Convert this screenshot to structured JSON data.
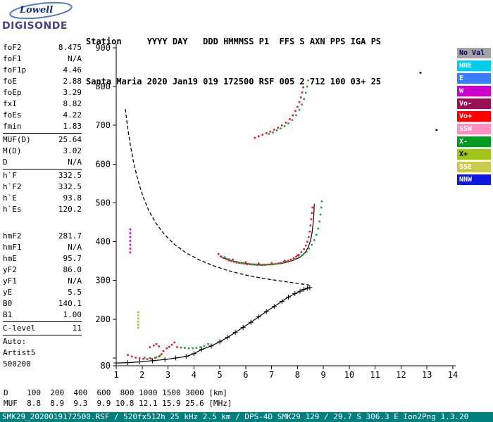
{
  "logo": {
    "line1": "Lowell",
    "line2": "DIGISONDE"
  },
  "header": {
    "line1": "Station     YYYY DAY   DDD HMMMSS P1  FFS S AXN PPS IGA PS",
    "line2": "Santa Maria 2020 Jan19 019 172500 RSF 005 2 712 100 03+ 25"
  },
  "params": {
    "groups": [
      {
        "rows": [
          [
            "foF2",
            "8.475"
          ],
          [
            "foF1",
            "N/A"
          ],
          [
            "foF1p",
            "4.46"
          ],
          [
            "foE",
            "2.88"
          ],
          [
            "foEp",
            "3.29"
          ],
          [
            "fxI",
            "8.82"
          ],
          [
            "foEs",
            "4.22"
          ],
          [
            "fmin",
            "1.83"
          ]
        ],
        "divider_after": true
      },
      {
        "rows": [
          [
            "MUF(D)",
            "25.64"
          ],
          [
            "M(D)",
            "3.02"
          ],
          [
            "D",
            "N/A"
          ]
        ],
        "divider_after": true
      },
      {
        "rows": [
          [
            "h`F",
            "332.5"
          ],
          [
            "h`F2",
            "332.5"
          ],
          [
            "h`E",
            "93.8"
          ],
          [
            "h`Es",
            "120.2"
          ]
        ],
        "divider_after": false,
        "gap_after": 22
      },
      {
        "rows": [
          [
            "hmF2",
            "281.7"
          ],
          [
            "hmF1",
            "N/A"
          ],
          [
            "hmE",
            "95.7"
          ],
          [
            "yF2",
            "86.0"
          ],
          [
            "yF1",
            "N/A"
          ],
          [
            "yE",
            "5.5"
          ],
          [
            "B0",
            "140.1"
          ],
          [
            "B1",
            "1.00"
          ]
        ],
        "divider_after": true
      },
      {
        "rows": [
          [
            "C-level",
            "11"
          ]
        ],
        "divider_after": true
      },
      {
        "rows": [
          [
            "Auto:",
            ""
          ],
          [
            "Artist5",
            ""
          ],
          [
            "500200",
            ""
          ]
        ],
        "divider_after": false
      }
    ]
  },
  "legend": {
    "entries": [
      {
        "label": "No Val",
        "bg": "#a3a3a8",
        "fg": "#000066"
      },
      {
        "label": "NNE",
        "bg": "#00ccee",
        "fg": "#ffffff"
      },
      {
        "label": "E",
        "bg": "#3a7dff",
        "fg": "#ffffff"
      },
      {
        "label": "W",
        "bg": "#cc00cc",
        "fg": "#ffffff"
      },
      {
        "label": "Vo-",
        "bg": "#991155",
        "fg": "#ffffff"
      },
      {
        "label": "Vo+",
        "bg": "#ff0000",
        "fg": "#ffffff"
      },
      {
        "label": "SSW",
        "bg": "#ff8fc0",
        "fg": "#ffffff"
      },
      {
        "label": "X-",
        "bg": "#009922",
        "fg": "#ffffff"
      },
      {
        "label": "X+",
        "bg": "#9fc41a",
        "fg": "#000000"
      },
      {
        "label": "SSE",
        "bg": "#c9c94f",
        "fg": "#ffffff"
      },
      {
        "label": "NNW",
        "bg": "#0f18dd",
        "fg": "#ffffff"
      }
    ]
  },
  "chart_data": {
    "type": "scatter",
    "title": "",
    "xlabel": "",
    "ylabel": "",
    "axes": {
      "xlim": [
        1,
        14
      ],
      "ylim": [
        80,
        900
      ],
      "x_ticks": [
        1,
        2,
        3,
        4,
        5,
        6,
        7,
        8,
        9,
        10,
        11,
        12,
        13,
        14
      ],
      "y_ticks": [
        80,
        100,
        200,
        300,
        400,
        500,
        600,
        700,
        800,
        900
      ],
      "y_labels": [
        900,
        800,
        700,
        600,
        500,
        400,
        300,
        200,
        80
      ]
    },
    "series": [
      {
        "name": "muf-transmission-curve",
        "kind": "line",
        "dash": "5 3",
        "color": "#000000",
        "w": 1.3,
        "points": [
          [
            1.35,
            742
          ],
          [
            1.44,
            695
          ],
          [
            1.55,
            648
          ],
          [
            1.68,
            602
          ],
          [
            1.84,
            558
          ],
          [
            2.03,
            517
          ],
          [
            2.26,
            480
          ],
          [
            2.54,
            447
          ],
          [
            2.87,
            418
          ],
          [
            3.25,
            393
          ],
          [
            3.7,
            371
          ],
          [
            4.2,
            353
          ],
          [
            4.75,
            338
          ],
          [
            5.35,
            325
          ],
          [
            6.0,
            314
          ],
          [
            6.7,
            305
          ],
          [
            7.4,
            298
          ],
          [
            8.05,
            292
          ],
          [
            8.45,
            288
          ]
        ]
      },
      {
        "name": "true-height-profile",
        "kind": "line",
        "color": "#000000",
        "marker": "plus",
        "w": 1.2,
        "points": [
          [
            1.0,
            87
          ],
          [
            1.45,
            88
          ],
          [
            1.9,
            90
          ],
          [
            2.4,
            93
          ],
          [
            2.88,
            96
          ],
          [
            3.3,
            100
          ],
          [
            3.7,
            104
          ],
          [
            4.0,
            111
          ],
          [
            4.3,
            122
          ],
          [
            4.67,
            131
          ],
          [
            5.0,
            142
          ],
          [
            5.3,
            153
          ],
          [
            5.6,
            166
          ],
          [
            5.9,
            179
          ],
          [
            6.2,
            192
          ],
          [
            6.5,
            206
          ],
          [
            6.8,
            220
          ],
          [
            7.1,
            233
          ],
          [
            7.4,
            246
          ],
          [
            7.65,
            257
          ],
          [
            7.9,
            266
          ],
          [
            8.1,
            272
          ],
          [
            8.25,
            277
          ],
          [
            8.38,
            280
          ],
          [
            8.475,
            281.7
          ]
        ]
      },
      {
        "name": "o-trace-fit",
        "kind": "line",
        "color": "#000000",
        "w": 1.2,
        "points": [
          [
            5.0,
            362
          ],
          [
            5.4,
            352
          ],
          [
            5.8,
            346
          ],
          [
            6.2,
            342
          ],
          [
            6.6,
            340
          ],
          [
            7.0,
            341
          ],
          [
            7.4,
            344
          ],
          [
            7.8,
            351
          ],
          [
            8.1,
            360
          ],
          [
            8.3,
            372
          ],
          [
            8.42,
            386
          ],
          [
            8.5,
            402
          ],
          [
            8.56,
            422
          ],
          [
            8.6,
            444
          ],
          [
            8.63,
            466
          ],
          [
            8.65,
            498
          ]
        ]
      },
      {
        "name": "f-trace-o",
        "kind": "scatter",
        "color": "#e8192c",
        "points": [
          [
            4.95,
            368
          ],
          [
            5.05,
            362
          ],
          [
            5.15,
            358
          ],
          [
            5.25,
            355
          ],
          [
            5.35,
            352
          ],
          [
            5.45,
            350
          ],
          [
            5.5,
            354
          ],
          [
            5.55,
            348
          ],
          [
            5.65,
            346
          ],
          [
            5.75,
            345
          ],
          [
            5.85,
            344
          ],
          [
            5.95,
            343
          ],
          [
            6.0,
            347
          ],
          [
            6.05,
            342
          ],
          [
            6.15,
            342
          ],
          [
            6.25,
            341
          ],
          [
            6.35,
            341
          ],
          [
            6.45,
            340
          ],
          [
            6.5,
            344
          ],
          [
            6.55,
            340
          ],
          [
            6.65,
            340
          ],
          [
            6.75,
            340
          ],
          [
            6.85,
            341
          ],
          [
            6.95,
            341
          ],
          [
            7.0,
            345
          ],
          [
            7.05,
            342
          ],
          [
            7.15,
            343
          ],
          [
            7.25,
            344
          ],
          [
            7.35,
            345
          ],
          [
            7.45,
            347
          ],
          [
            7.5,
            351
          ],
          [
            7.55,
            349
          ],
          [
            7.65,
            351
          ],
          [
            7.75,
            354
          ],
          [
            7.85,
            357
          ],
          [
            7.95,
            361
          ],
          [
            8.0,
            365
          ],
          [
            8.05,
            366
          ],
          [
            8.15,
            373
          ],
          [
            8.25,
            381
          ],
          [
            8.32,
            390
          ],
          [
            8.38,
            400
          ],
          [
            8.43,
            412
          ],
          [
            8.47,
            426
          ],
          [
            8.5,
            442
          ],
          [
            8.53,
            458
          ],
          [
            8.56,
            474
          ],
          [
            8.58,
            488
          ]
        ]
      },
      {
        "name": "f-trace-x",
        "kind": "scatter",
        "color": "#23a33c",
        "points": [
          [
            5.2,
            360
          ],
          [
            5.35,
            355
          ],
          [
            5.5,
            351
          ],
          [
            5.65,
            348
          ],
          [
            5.8,
            346
          ],
          [
            5.95,
            344
          ],
          [
            6.1,
            343
          ],
          [
            6.25,
            342
          ],
          [
            6.4,
            341
          ],
          [
            6.55,
            341
          ],
          [
            6.7,
            341
          ],
          [
            6.85,
            341
          ],
          [
            7.0,
            342
          ],
          [
            7.15,
            343
          ],
          [
            7.3,
            344
          ],
          [
            7.45,
            346
          ],
          [
            7.6,
            348
          ],
          [
            7.75,
            351
          ],
          [
            7.9,
            355
          ],
          [
            8.05,
            360
          ],
          [
            8.2,
            366
          ],
          [
            8.35,
            374
          ],
          [
            8.45,
            382
          ],
          [
            8.55,
            392
          ],
          [
            8.65,
            404
          ],
          [
            8.73,
            418
          ],
          [
            8.8,
            434
          ],
          [
            8.85,
            452
          ],
          [
            8.89,
            470
          ],
          [
            8.92,
            488
          ],
          [
            8.94,
            504
          ]
        ]
      },
      {
        "name": "second-hop-o",
        "kind": "scatter",
        "color": "#e8192c",
        "points": [
          [
            6.35,
            668
          ],
          [
            6.5,
            672
          ],
          [
            6.65,
            676
          ],
          [
            6.8,
            680
          ],
          [
            6.95,
            684
          ],
          [
            7.1,
            689
          ],
          [
            7.25,
            694
          ],
          [
            7.4,
            700
          ],
          [
            7.55,
            707
          ],
          [
            7.7,
            716
          ],
          [
            7.82,
            726
          ],
          [
            7.92,
            737
          ],
          [
            8.0,
            748
          ],
          [
            8.07,
            760
          ],
          [
            8.13,
            772
          ],
          [
            8.18,
            785
          ],
          [
            8.22,
            798
          ]
        ]
      },
      {
        "name": "second-hop-x",
        "kind": "scatter",
        "color": "#23a33c",
        "points": [
          [
            6.9,
            678
          ],
          [
            7.05,
            682
          ],
          [
            7.2,
            687
          ],
          [
            7.35,
            692
          ],
          [
            7.5,
            698
          ],
          [
            7.65,
            705
          ],
          [
            7.8,
            714
          ],
          [
            7.95,
            726
          ],
          [
            8.07,
            740
          ],
          [
            8.17,
            754
          ],
          [
            8.25,
            768
          ],
          [
            8.32,
            784
          ],
          [
            8.37,
            800
          ],
          [
            8.41,
            816
          ]
        ]
      },
      {
        "name": "e-trace-o",
        "kind": "scatter",
        "color": "#e8192c",
        "points": [
          [
            1.45,
            108
          ],
          [
            1.6,
            104
          ],
          [
            1.75,
            101
          ],
          [
            1.9,
            99
          ],
          [
            2.05,
            98
          ],
          [
            2.2,
            97
          ],
          [
            2.35,
            98
          ],
          [
            2.5,
            100
          ],
          [
            2.65,
            104
          ],
          [
            2.75,
            110
          ],
          [
            2.82,
            118
          ]
        ]
      },
      {
        "name": "e-trace-x",
        "kind": "scatter",
        "color": "#23a33c",
        "points": [
          [
            2.1,
            101
          ],
          [
            2.3,
            100
          ],
          [
            2.55,
            102
          ],
          [
            2.7,
            106
          ]
        ]
      },
      {
        "name": "es-trace-o",
        "kind": "scatter",
        "color": "#e8192c",
        "points": [
          [
            2.3,
            128
          ],
          [
            2.45,
            132
          ],
          [
            2.55,
            136
          ],
          [
            2.65,
            130
          ],
          [
            2.95,
            125
          ],
          [
            3.05,
            129
          ],
          [
            3.15,
            134
          ],
          [
            3.25,
            140
          ],
          [
            3.35,
            128
          ]
        ]
      },
      {
        "name": "es-trace-x",
        "kind": "scatter",
        "color": "#23a33c",
        "points": [
          [
            3.5,
            127
          ],
          [
            3.65,
            126
          ],
          [
            3.8,
            125
          ],
          [
            3.95,
            125
          ],
          [
            4.1,
            126
          ],
          [
            4.25,
            128
          ],
          [
            4.4,
            131
          ],
          [
            4.55,
            136
          ]
        ]
      },
      {
        "name": "w-marker",
        "kind": "scatter",
        "color": "#cc00cc",
        "points": [
          [
            1.54,
            372
          ],
          [
            1.54,
            382
          ],
          [
            1.54,
            392
          ],
          [
            1.54,
            402
          ],
          [
            1.54,
            412
          ],
          [
            1.54,
            422
          ],
          [
            1.54,
            432
          ]
        ]
      },
      {
        "name": "sse-marker",
        "kind": "scatter",
        "color": "#b9b91e",
        "points": [
          [
            1.85,
            178
          ],
          [
            1.85,
            186
          ],
          [
            1.85,
            194
          ],
          [
            1.85,
            202
          ],
          [
            1.85,
            210
          ],
          [
            1.85,
            218
          ]
        ]
      },
      {
        "name": "noise-dots",
        "kind": "scatter",
        "color": "#000000",
        "points": [
          [
            12.75,
            836
          ],
          [
            13.37,
            688
          ]
        ]
      }
    ]
  },
  "dmuf": {
    "rows": [
      {
        "label": "D",
        "values": [
          "100",
          "200",
          "400",
          "600",
          "800",
          "1000",
          "1500",
          "3000"
        ],
        "unit": "[km]"
      },
      {
        "label": "MUF",
        "values": [
          "8.8",
          "8.9",
          "9.3",
          "9.9",
          "10.8",
          "12.1",
          "15.9",
          "25.6"
        ],
        "unit": "[MHz]"
      }
    ]
  },
  "statusbar": {
    "text": "SMK29_2020019172500.RSF / 520fx512h 25 kHz 2.5 km / DPS-4D SMK29 129 / 29.7 S 306.3 E Ion2Png 1.3.20"
  }
}
